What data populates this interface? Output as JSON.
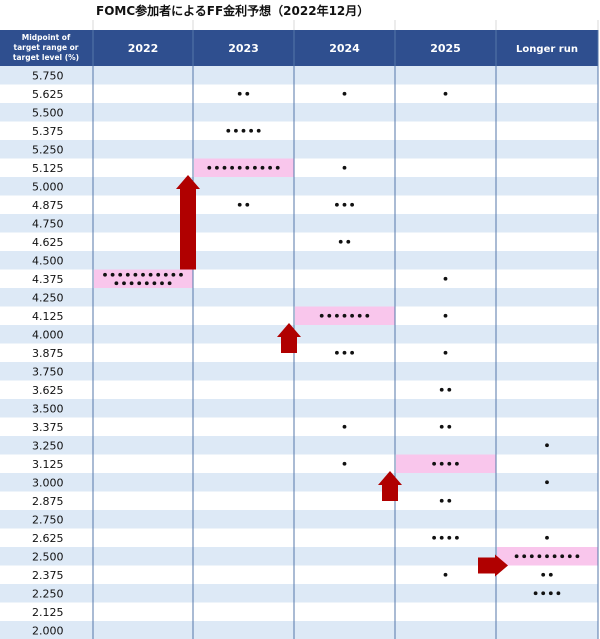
{
  "title": "FOMC参加者によるFF金利予想（2022年12月）",
  "header": {
    "rowlabel_lines": [
      "Midpoint of",
      "target range or",
      "target level (%)"
    ],
    "columns": [
      "2022",
      "2023",
      "2024",
      "2025",
      "Longer run"
    ]
  },
  "colors": {
    "header_bg": "#2f4f8f",
    "band_blue": "#dde9f6",
    "band_white": "#ffffff",
    "median_highlight": "#f9c6ec",
    "arrow": "#b00000",
    "dot": "#111111",
    "divider": "#5577aa"
  },
  "chart_data": {
    "type": "scatter",
    "title": "FOMC参加者によるFF金利予想（2022年12月）",
    "ylabel": "Midpoint of target range or target level (%)",
    "categories": [
      "2022",
      "2023",
      "2024",
      "2025",
      "Longer run"
    ],
    "levels": [
      "5.750",
      "5.625",
      "5.500",
      "5.375",
      "5.250",
      "5.125",
      "5.000",
      "4.875",
      "4.750",
      "4.625",
      "4.500",
      "4.375",
      "4.250",
      "4.125",
      "4.000",
      "3.875",
      "3.750",
      "3.625",
      "3.500",
      "3.375",
      "3.250",
      "3.125",
      "3.000",
      "2.875",
      "2.750",
      "2.625",
      "2.500",
      "2.375",
      "2.250",
      "2.125",
      "2.000"
    ],
    "ylim": [
      2.0,
      5.75
    ],
    "dots": {
      "2022": [
        [
          4.375,
          19
        ]
      ],
      "2023": [
        [
          5.625,
          2
        ],
        [
          5.375,
          5
        ],
        [
          5.125,
          10
        ],
        [
          4.875,
          2
        ]
      ],
      "2024": [
        [
          5.625,
          1
        ],
        [
          5.125,
          1
        ],
        [
          4.875,
          3
        ],
        [
          4.625,
          2
        ],
        [
          4.125,
          7
        ],
        [
          3.875,
          3
        ],
        [
          3.375,
          1
        ],
        [
          3.125,
          1
        ]
      ],
      "2025": [
        [
          5.625,
          1
        ],
        [
          4.375,
          1
        ],
        [
          4.125,
          1
        ],
        [
          3.875,
          1
        ],
        [
          3.625,
          2
        ],
        [
          3.375,
          2
        ],
        [
          3.125,
          4
        ],
        [
          2.875,
          2
        ],
        [
          2.625,
          4
        ],
        [
          2.375,
          1
        ]
      ],
      "Longer run": [
        [
          3.25,
          1
        ],
        [
          3.0,
          1
        ],
        [
          2.625,
          1
        ],
        [
          2.5,
          9
        ],
        [
          2.375,
          2
        ],
        [
          2.25,
          4
        ]
      ]
    },
    "medians": {
      "2022": 4.375,
      "2023": 5.125,
      "2024": 4.125,
      "2025": 3.125,
      "Longer run": 2.5
    },
    "arrows": [
      {
        "direction": "up",
        "from_category": "2022",
        "to_category": "2023"
      },
      {
        "direction": "up",
        "from_category": "2023",
        "to_category": "2024"
      },
      {
        "direction": "up",
        "from_category": "2024",
        "to_category": "2025"
      },
      {
        "direction": "right",
        "from_category": "2025",
        "to_category": "Longer run"
      }
    ],
    "grid": true,
    "legend": "none"
  }
}
